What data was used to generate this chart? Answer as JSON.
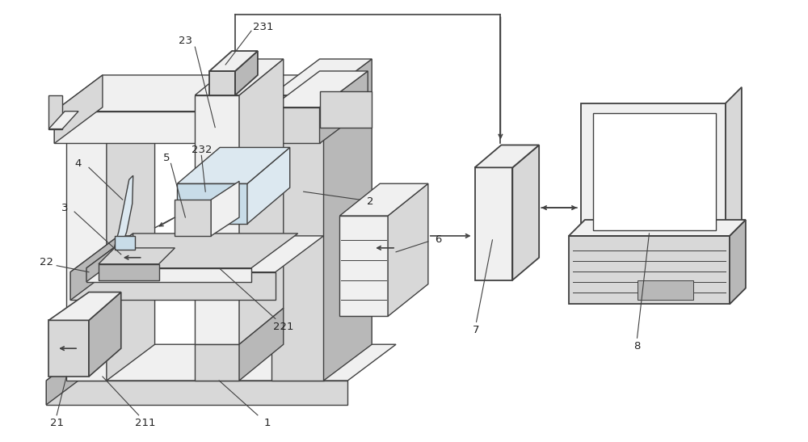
{
  "bg_color": "#ffffff",
  "lc": "#404040",
  "lw": 1.0,
  "figsize": [
    10,
    5.47
  ],
  "dpi": 100,
  "colors": {
    "white": "#ffffff",
    "light": "#f0f0f0",
    "mid": "#d8d8d8",
    "dark": "#b8b8b8",
    "blue_tint": "#dce8f0",
    "blue_mid": "#c8dce8"
  }
}
